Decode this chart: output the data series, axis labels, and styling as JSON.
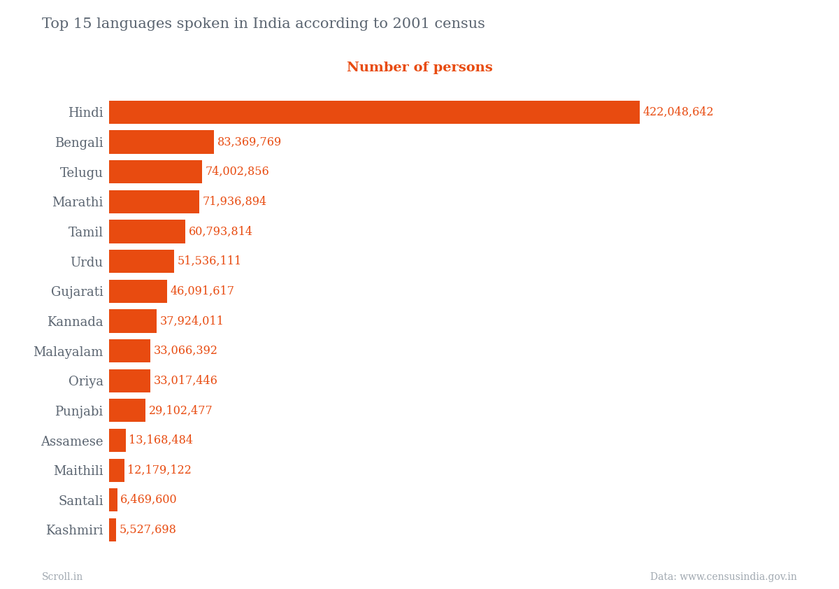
{
  "title": "Top 15 languages spoken in India according to 2001 census",
  "xlabel": "Number of persons",
  "title_color": "#5a6470",
  "xlabel_color": "#e84b10",
  "bar_color": "#e84b10",
  "label_color": "#e84b10",
  "footer_left": "Scroll.in",
  "footer_right": "Data: www.censusindia.gov.in",
  "footer_color": "#a0a8b0",
  "background_color": "#ffffff",
  "languages": [
    "Hindi",
    "Bengali",
    "Telugu",
    "Marathi",
    "Tamil",
    "Urdu",
    "Gujarati",
    "Kannada",
    "Malayalam",
    "Oriya",
    "Punjabi",
    "Assamese",
    "Maithili",
    "Santali",
    "Kashmiri"
  ],
  "values": [
    422048642,
    83369769,
    74002856,
    71936894,
    60793814,
    51536111,
    46091617,
    37924011,
    33066392,
    33017446,
    29102477,
    13168484,
    12179122,
    6469600,
    5527698
  ],
  "value_labels": [
    "422,048,642",
    "83,369,769",
    "74,002,856",
    "71,936,894",
    "60,793,814",
    "51,536,111",
    "46,091,617",
    "37,924,011",
    "33,066,392",
    "33,017,446",
    "29,102,477",
    "13,168,484",
    "12,179,122",
    "6,469,600",
    "5,527,698"
  ]
}
